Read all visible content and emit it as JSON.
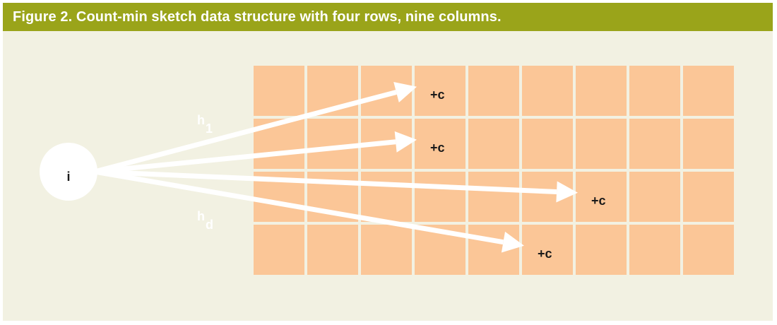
{
  "figure": {
    "caption": "Figure 2. Count-min sketch data structure with four rows, nine columns."
  },
  "sketch": {
    "rows": 4,
    "columns": 9,
    "input_label": "i",
    "increment_label": "+c",
    "hash_labels": [
      {
        "base": "h",
        "sub": "1"
      },
      {
        "base": "h",
        "sub": "d"
      }
    ],
    "increments": [
      {
        "row": 0,
        "col": 3
      },
      {
        "row": 1,
        "col": 3
      },
      {
        "row": 2,
        "col": 6
      },
      {
        "row": 3,
        "col": 5
      }
    ]
  },
  "colors": {
    "caption_bar": "#9aa41a",
    "background": "#f2f1e2",
    "cell": "#fbc697",
    "arrow": "#ffffff"
  }
}
